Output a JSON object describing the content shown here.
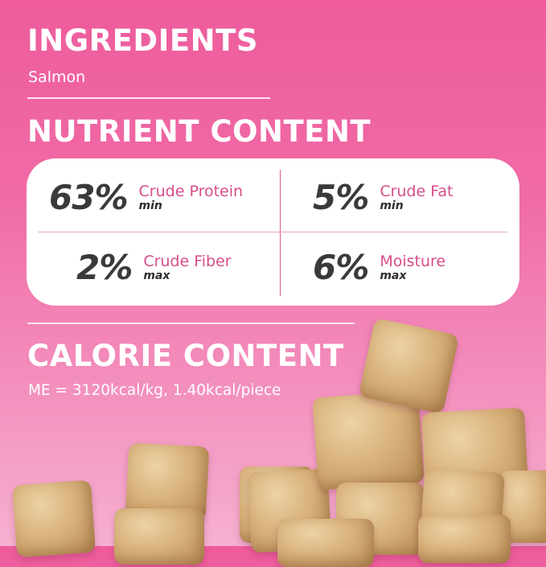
{
  "ingredients": {
    "title": "INGREDIENTS",
    "value": "Salmon"
  },
  "nutrients": {
    "title": "NUTRIENT CONTENT",
    "items": [
      {
        "percent": "63%",
        "name": "Crude Protein",
        "qualifier": "min"
      },
      {
        "percent": "5%",
        "name": "Crude Fat",
        "qualifier": "min"
      },
      {
        "percent": "2%",
        "name": "Crude Fiber",
        "qualifier": "max"
      },
      {
        "percent": "6%",
        "name": "Moisture",
        "qualifier": "max"
      }
    ]
  },
  "calories": {
    "title": "CALORIE CONTENT",
    "value": "ME = 3120kcal/kg, 1.40kcal/piece"
  },
  "colors": {
    "accent": "#d64d8a",
    "background": "#ee5c9c",
    "number": "#3a3a3c"
  }
}
